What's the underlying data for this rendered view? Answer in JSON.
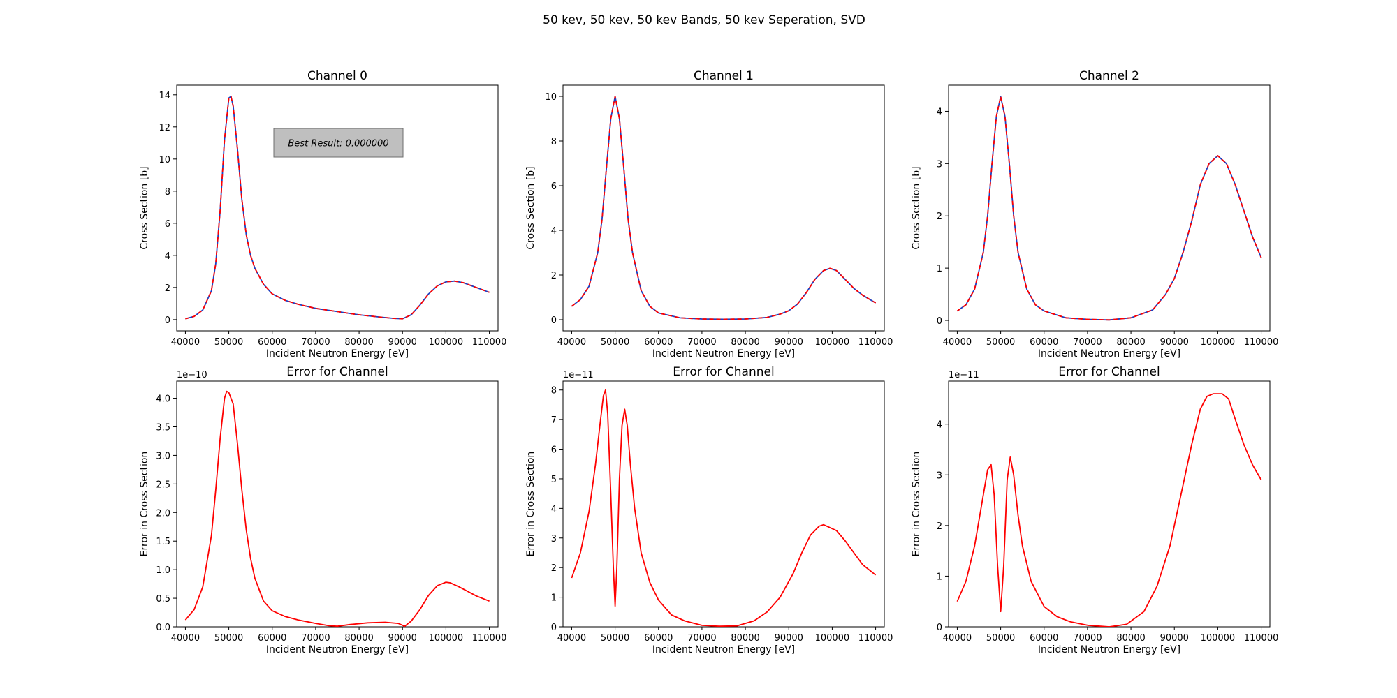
{
  "figure": {
    "suptitle": "50 kev, 50 kev, 50 kev Bands, 50 kev Seperation, SVD"
  },
  "chart_data": [
    {
      "type": "line",
      "title": "Channel 0",
      "xlabel": "Incident Neutron Energy [eV]",
      "ylabel": "Cross Section [b]",
      "xlim": [
        38000,
        112000
      ],
      "ylim": [
        -0.7,
        14.6
      ],
      "xticks": [
        40000,
        50000,
        60000,
        70000,
        80000,
        90000,
        100000,
        110000
      ],
      "xtick_labels": [
        "40000",
        "50000",
        "60000",
        "70000",
        "80000",
        "90000",
        "100000",
        "110000"
      ],
      "yticks": [
        0,
        2,
        4,
        6,
        8,
        10,
        12,
        14
      ],
      "ytick_labels": [
        "0",
        "2",
        "4",
        "6",
        "8",
        "10",
        "12",
        "14"
      ],
      "annotation": {
        "text": "Best Result: 0.000000"
      },
      "series": [
        {
          "color": "#1f3fbf",
          "style": "solid",
          "x": [
            40000,
            42000,
            44000,
            46000,
            47000,
            48000,
            49000,
            50000,
            50500,
            51000,
            52000,
            53000,
            54000,
            55000,
            56000,
            58000,
            60000,
            63000,
            66000,
            70000,
            75000,
            80000,
            85000,
            88000,
            90000,
            92000,
            94000,
            96000,
            98000,
            100000,
            102000,
            104000,
            106000,
            108000,
            110000
          ],
          "y": [
            0.05,
            0.2,
            0.6,
            1.8,
            3.5,
            6.8,
            11.2,
            13.8,
            13.9,
            13.3,
            10.6,
            7.5,
            5.3,
            4.0,
            3.2,
            2.2,
            1.6,
            1.2,
            0.95,
            0.7,
            0.5,
            0.3,
            0.15,
            0.08,
            0.05,
            0.3,
            0.9,
            1.6,
            2.1,
            2.35,
            2.4,
            2.3,
            2.1,
            1.9,
            1.7
          ]
        },
        {
          "color": "#ff0000",
          "style": "dashed",
          "x": [
            40000,
            42000,
            44000,
            46000,
            47000,
            48000,
            49000,
            50000,
            50500,
            51000,
            52000,
            53000,
            54000,
            55000,
            56000,
            58000,
            60000,
            63000,
            66000,
            70000,
            75000,
            80000,
            85000,
            88000,
            90000,
            92000,
            94000,
            96000,
            98000,
            100000,
            102000,
            104000,
            106000,
            108000,
            110000
          ],
          "y": [
            0.05,
            0.2,
            0.6,
            1.8,
            3.5,
            6.8,
            11.2,
            13.8,
            13.9,
            13.3,
            10.6,
            7.5,
            5.3,
            4.0,
            3.2,
            2.2,
            1.6,
            1.2,
            0.95,
            0.7,
            0.5,
            0.3,
            0.15,
            0.08,
            0.05,
            0.3,
            0.9,
            1.6,
            2.1,
            2.35,
            2.4,
            2.3,
            2.1,
            1.9,
            1.7
          ]
        }
      ]
    },
    {
      "type": "line",
      "title": "Channel 1",
      "xlabel": "Incident Neutron Energy [eV]",
      "ylabel": "Cross Section [b]",
      "xlim": [
        38000,
        112000
      ],
      "ylim": [
        -0.5,
        10.5
      ],
      "xticks": [
        40000,
        50000,
        60000,
        70000,
        80000,
        90000,
        100000,
        110000
      ],
      "xtick_labels": [
        "40000",
        "50000",
        "60000",
        "70000",
        "80000",
        "90000",
        "100000",
        "110000"
      ],
      "yticks": [
        0,
        2,
        4,
        6,
        8,
        10
      ],
      "ytick_labels": [
        "0",
        "2",
        "4",
        "6",
        "8",
        "10"
      ],
      "series": [
        {
          "color": "#1f3fbf",
          "style": "solid",
          "x": [
            40000,
            42000,
            44000,
            46000,
            47000,
            48000,
            49000,
            50000,
            51000,
            52000,
            53000,
            54000,
            56000,
            58000,
            60000,
            65000,
            70000,
            75000,
            80000,
            85000,
            88000,
            90000,
            92000,
            94000,
            96000,
            98000,
            99500,
            101000,
            103000,
            105000,
            107000,
            110000
          ],
          "y": [
            0.6,
            0.9,
            1.5,
            3.0,
            4.5,
            6.8,
            9.0,
            10.0,
            9.0,
            6.8,
            4.5,
            3.0,
            1.3,
            0.6,
            0.3,
            0.08,
            0.03,
            0.02,
            0.03,
            0.1,
            0.25,
            0.4,
            0.7,
            1.2,
            1.8,
            2.2,
            2.3,
            2.2,
            1.8,
            1.4,
            1.1,
            0.75
          ]
        },
        {
          "color": "#ff0000",
          "style": "dashed",
          "x": [
            40000,
            42000,
            44000,
            46000,
            47000,
            48000,
            49000,
            50000,
            51000,
            52000,
            53000,
            54000,
            56000,
            58000,
            60000,
            65000,
            70000,
            75000,
            80000,
            85000,
            88000,
            90000,
            92000,
            94000,
            96000,
            98000,
            99500,
            101000,
            103000,
            105000,
            107000,
            110000
          ],
          "y": [
            0.6,
            0.9,
            1.5,
            3.0,
            4.5,
            6.8,
            9.0,
            10.0,
            9.0,
            6.8,
            4.5,
            3.0,
            1.3,
            0.6,
            0.3,
            0.08,
            0.03,
            0.02,
            0.03,
            0.1,
            0.25,
            0.4,
            0.7,
            1.2,
            1.8,
            2.2,
            2.3,
            2.2,
            1.8,
            1.4,
            1.1,
            0.75
          ]
        }
      ]
    },
    {
      "type": "line",
      "title": "Channel 2",
      "xlabel": "Incident Neutron Energy [eV]",
      "ylabel": "Cross Section [b]",
      "xlim": [
        38000,
        112000
      ],
      "ylim": [
        -0.2,
        4.5
      ],
      "xticks": [
        40000,
        50000,
        60000,
        70000,
        80000,
        90000,
        100000,
        110000
      ],
      "xtick_labels": [
        "40000",
        "50000",
        "60000",
        "70000",
        "80000",
        "90000",
        "100000",
        "110000"
      ],
      "yticks": [
        0,
        1,
        2,
        3,
        4
      ],
      "ytick_labels": [
        "0",
        "1",
        "2",
        "3",
        "4"
      ],
      "series": [
        {
          "color": "#1f3fbf",
          "style": "solid",
          "x": [
            40000,
            42000,
            44000,
            46000,
            47000,
            48000,
            49000,
            50000,
            51000,
            52000,
            53000,
            54000,
            56000,
            58000,
            60000,
            65000,
            70000,
            75000,
            80000,
            85000,
            88000,
            90000,
            92000,
            94000,
            96000,
            98000,
            100000,
            102000,
            104000,
            106000,
            108000,
            110000
          ],
          "y": [
            0.18,
            0.3,
            0.6,
            1.3,
            2.0,
            3.0,
            3.9,
            4.28,
            3.9,
            3.0,
            2.0,
            1.3,
            0.6,
            0.3,
            0.18,
            0.05,
            0.02,
            0.01,
            0.05,
            0.2,
            0.5,
            0.8,
            1.3,
            1.9,
            2.6,
            3.0,
            3.15,
            3.0,
            2.6,
            2.1,
            1.6,
            1.2
          ]
        },
        {
          "color": "#ff0000",
          "style": "dashed",
          "x": [
            40000,
            42000,
            44000,
            46000,
            47000,
            48000,
            49000,
            50000,
            51000,
            52000,
            53000,
            54000,
            56000,
            58000,
            60000,
            65000,
            70000,
            75000,
            80000,
            85000,
            88000,
            90000,
            92000,
            94000,
            96000,
            98000,
            100000,
            102000,
            104000,
            106000,
            108000,
            110000
          ],
          "y": [
            0.18,
            0.3,
            0.6,
            1.3,
            2.0,
            3.0,
            3.9,
            4.28,
            3.9,
            3.0,
            2.0,
            1.3,
            0.6,
            0.3,
            0.18,
            0.05,
            0.02,
            0.01,
            0.05,
            0.2,
            0.5,
            0.8,
            1.3,
            1.9,
            2.6,
            3.0,
            3.15,
            3.0,
            2.6,
            2.1,
            1.6,
            1.2
          ]
        }
      ]
    },
    {
      "type": "line",
      "title": "Error for Channel",
      "xlabel": "Incident Neutron Energy [eV]",
      "ylabel": "Error in Cross Section",
      "offset_text": "1e−10",
      "xlim": [
        38000,
        112000
      ],
      "ylim": [
        0,
        4.3
      ],
      "xticks": [
        40000,
        50000,
        60000,
        70000,
        80000,
        90000,
        100000,
        110000
      ],
      "xtick_labels": [
        "40000",
        "50000",
        "60000",
        "70000",
        "80000",
        "90000",
        "100000",
        "110000"
      ],
      "yticks": [
        0,
        0.5,
        1.0,
        1.5,
        2.0,
        2.5,
        3.0,
        3.5,
        4.0
      ],
      "ytick_labels": [
        "0.0",
        "0.5",
        "1.0",
        "1.5",
        "2.0",
        "2.5",
        "3.0",
        "3.5",
        "4.0"
      ],
      "series": [
        {
          "color": "#ff0000",
          "style": "solid",
          "x": [
            40000,
            42000,
            44000,
            46000,
            47000,
            48000,
            49000,
            49500,
            50000,
            51000,
            52000,
            53000,
            54000,
            55000,
            56000,
            58000,
            60000,
            63000,
            66000,
            70000,
            73000,
            75000,
            78000,
            82000,
            86000,
            89000,
            90500,
            92000,
            94000,
            96000,
            98000,
            100000,
            101000,
            103000,
            105000,
            107000,
            110000
          ],
          "y": [
            0.12,
            0.3,
            0.7,
            1.6,
            2.4,
            3.3,
            4.0,
            4.12,
            4.1,
            3.9,
            3.2,
            2.4,
            1.7,
            1.2,
            0.85,
            0.45,
            0.28,
            0.18,
            0.12,
            0.06,
            0.02,
            0.01,
            0.04,
            0.07,
            0.08,
            0.06,
            0.01,
            0.1,
            0.3,
            0.55,
            0.72,
            0.78,
            0.77,
            0.7,
            0.62,
            0.54,
            0.45
          ]
        }
      ]
    },
    {
      "type": "line",
      "title": "Error for Channel",
      "xlabel": "Incident Neutron Energy [eV]",
      "ylabel": "Error in Cross Section",
      "offset_text": "1e−11",
      "xlim": [
        38000,
        112000
      ],
      "ylim": [
        0,
        8.3
      ],
      "xticks": [
        40000,
        50000,
        60000,
        70000,
        80000,
        90000,
        100000,
        110000
      ],
      "xtick_labels": [
        "40000",
        "50000",
        "60000",
        "70000",
        "80000",
        "90000",
        "100000",
        "110000"
      ],
      "yticks": [
        0,
        1,
        2,
        3,
        4,
        5,
        6,
        7,
        8
      ],
      "ytick_labels": [
        "0",
        "1",
        "2",
        "3",
        "4",
        "5",
        "6",
        "7",
        "8"
      ],
      "series": [
        {
          "color": "#ff0000",
          "style": "solid",
          "x": [
            40000,
            42000,
            44000,
            45500,
            46500,
            47300,
            47800,
            48300,
            49000,
            49600,
            50000,
            50400,
            51000,
            51600,
            52200,
            52800,
            53500,
            54500,
            56000,
            58000,
            60000,
            63000,
            66000,
            70000,
            74000,
            78000,
            82000,
            85000,
            88000,
            91000,
            93000,
            95000,
            97000,
            98000,
            99500,
            101000,
            103000,
            105000,
            107000,
            110000
          ],
          "y": [
            1.65,
            2.5,
            3.9,
            5.5,
            6.8,
            7.8,
            8.0,
            7.2,
            4.5,
            2.0,
            0.7,
            2.0,
            5.0,
            6.8,
            7.35,
            6.8,
            5.5,
            4.0,
            2.5,
            1.5,
            0.9,
            0.4,
            0.2,
            0.05,
            0.02,
            0.03,
            0.2,
            0.5,
            1.0,
            1.8,
            2.5,
            3.1,
            3.4,
            3.45,
            3.35,
            3.25,
            2.9,
            2.5,
            2.1,
            1.75
          ]
        }
      ]
    },
    {
      "type": "line",
      "title": "Error for Channel",
      "xlabel": "Incident Neutron Energy [eV]",
      "ylabel": "Error in Cross Section",
      "offset_text": "1e−11",
      "xlim": [
        38000,
        112000
      ],
      "ylim": [
        0,
        4.85
      ],
      "xticks": [
        40000,
        50000,
        60000,
        70000,
        80000,
        90000,
        100000,
        110000
      ],
      "xtick_labels": [
        "40000",
        "50000",
        "60000",
        "70000",
        "80000",
        "90000",
        "100000",
        "110000"
      ],
      "yticks": [
        0,
        1,
        2,
        3,
        4
      ],
      "ytick_labels": [
        "0",
        "1",
        "2",
        "3",
        "4"
      ],
      "series": [
        {
          "color": "#ff0000",
          "style": "solid",
          "x": [
            40000,
            42000,
            44000,
            46000,
            47000,
            47800,
            48500,
            49300,
            50000,
            50700,
            51500,
            52200,
            53000,
            54000,
            55000,
            57000,
            60000,
            63000,
            66000,
            70000,
            75000,
            79000,
            83000,
            86000,
            89000,
            92000,
            94000,
            96000,
            97500,
            99000,
            101000,
            102500,
            104000,
            106000,
            108000,
            110000
          ],
          "y": [
            0.5,
            0.9,
            1.6,
            2.6,
            3.1,
            3.2,
            2.6,
            1.2,
            0.3,
            1.2,
            2.9,
            3.35,
            3.0,
            2.2,
            1.6,
            0.9,
            0.4,
            0.2,
            0.1,
            0.03,
            0.0,
            0.05,
            0.3,
            0.8,
            1.6,
            2.8,
            3.6,
            4.3,
            4.55,
            4.6,
            4.6,
            4.5,
            4.1,
            3.6,
            3.2,
            2.9
          ]
        }
      ]
    }
  ]
}
